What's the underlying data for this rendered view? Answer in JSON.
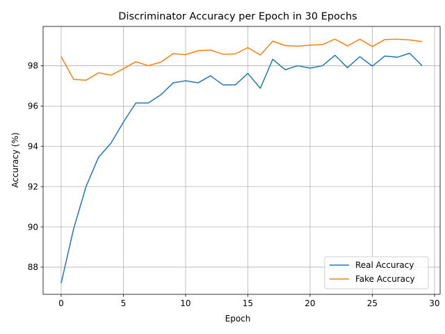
{
  "chart_data": {
    "type": "line",
    "title": "Discriminator Accuracy per Epoch in 30 Epochs",
    "xlabel": "Epoch",
    "ylabel": "Accuracy (%)",
    "xlim": [
      -1.45,
      30.45
    ],
    "ylim": [
      86.65,
      99.95
    ],
    "xticks": [
      0,
      5,
      10,
      15,
      20,
      25,
      30
    ],
    "yticks": [
      88,
      90,
      92,
      94,
      96,
      98
    ],
    "grid": true,
    "legend_position": "lower-right",
    "x": [
      0,
      1,
      2,
      3,
      4,
      5,
      6,
      7,
      8,
      9,
      10,
      11,
      12,
      13,
      14,
      15,
      16,
      17,
      18,
      19,
      20,
      21,
      22,
      23,
      24,
      25,
      26,
      27,
      28,
      29
    ],
    "series": [
      {
        "name": "Real Accuracy",
        "color": "#1f77b4",
        "values": [
          87.2,
          89.9,
          92.0,
          93.45,
          94.15,
          95.2,
          96.15,
          96.15,
          96.55,
          97.15,
          97.25,
          97.15,
          97.5,
          97.05,
          97.05,
          97.62,
          96.88,
          98.32,
          97.8,
          98.0,
          97.88,
          98.0,
          98.52,
          97.9,
          98.45,
          97.98,
          98.48,
          98.42,
          98.62,
          98.0
        ]
      },
      {
        "name": "Fake Accuracy",
        "color": "#ff7f0e",
        "values": [
          98.45,
          97.32,
          97.28,
          97.65,
          97.53,
          97.85,
          98.2,
          98.0,
          98.18,
          98.6,
          98.55,
          98.75,
          98.78,
          98.57,
          98.59,
          98.9,
          98.53,
          99.22,
          99.0,
          98.97,
          99.02,
          99.05,
          99.32,
          98.98,
          99.32,
          98.95,
          99.3,
          99.32,
          99.28,
          99.2
        ]
      }
    ]
  }
}
